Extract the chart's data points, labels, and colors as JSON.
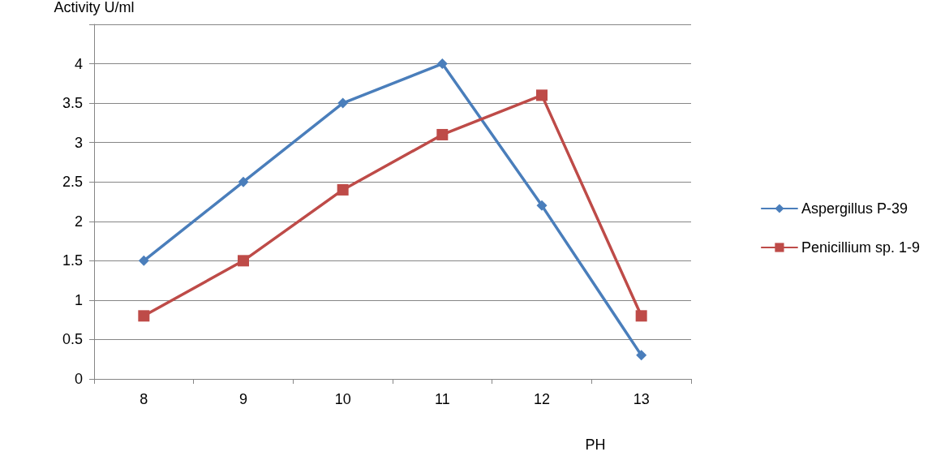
{
  "chart_data": {
    "type": "line",
    "xlabel": "PH",
    "ylabel": "Activity U/ml",
    "categories": [
      "8",
      "9",
      "10",
      "11",
      "12",
      "13"
    ],
    "series": [
      {
        "name": "Aspergillus P-39",
        "color": "#4a7ebb",
        "marker": "diamond",
        "values": [
          1.5,
          2.5,
          3.5,
          4,
          2.2,
          0.3
        ]
      },
      {
        "name": "Penicillium sp. 1-9",
        "color": "#be4b48",
        "marker": "square",
        "values": [
          0.8,
          1.5,
          2.4,
          3.1,
          3.6,
          0.8
        ]
      }
    ],
    "ylim": [
      0,
      4.5
    ],
    "yticks": [
      0,
      0.5,
      1,
      1.5,
      2,
      2.5,
      3,
      3.5,
      4,
      {
        "value": 4.5,
        "label": null
      }
    ],
    "grid": "y",
    "legend": "right"
  }
}
